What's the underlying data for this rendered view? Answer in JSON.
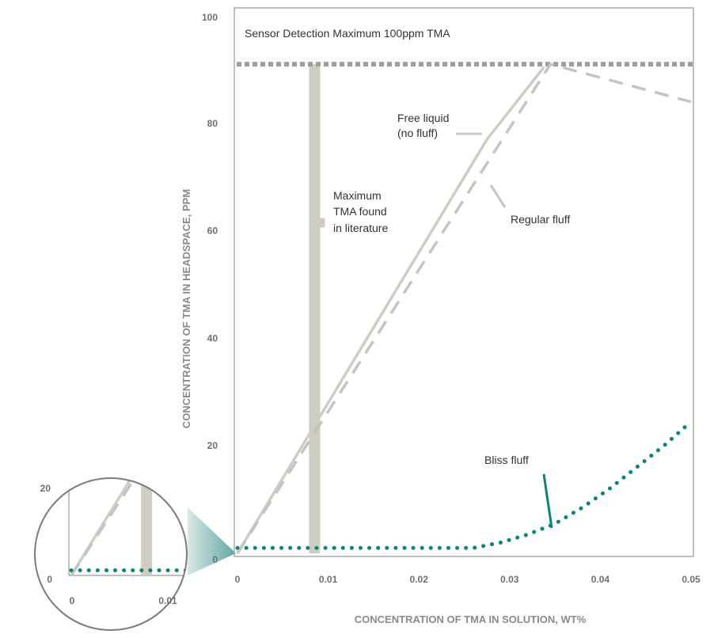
{
  "chart_data": {
    "type": "line",
    "xlabel": "CONCENTRATION OF TMA IN SOLUTION, WT%",
    "ylabel": "CONCENTRATION OF TMA IN HEADSPACE, PPM",
    "xlim": [
      0,
      0.05
    ],
    "ylim": [
      0,
      100
    ],
    "x_ticks": [
      0,
      0.01,
      0.02,
      0.03,
      0.04,
      0.05
    ],
    "x_tick_labels": [
      "0",
      "0.01",
      "0.02",
      "0.03",
      "0.04",
      "0.05"
    ],
    "y_ticks": [
      0,
      20,
      40,
      60,
      80,
      100
    ],
    "y_tick_labels": [
      "0",
      "20",
      "40",
      "60",
      "80",
      "100"
    ],
    "grid": false,
    "legend": "none",
    "sensor_max": {
      "label": "Sensor Detection Maximum 100ppm TMA",
      "y": 91,
      "color": "#9e9e9e"
    },
    "literature_band": {
      "label_lines": [
        "Maximum",
        "TMA found",
        "in literature"
      ],
      "x": 0.0085,
      "y_from": 0,
      "y_to": 91,
      "color": "#cfcdc1"
    },
    "series": [
      {
        "name": "Free liquid (no fluff)",
        "label_lines": [
          "Free liquid",
          "(no fluff)"
        ],
        "style": "solid",
        "color": "#cfcdc1",
        "x": [
          0,
          0.0275,
          0.0338
        ],
        "y": [
          0,
          77,
          90.5
        ]
      },
      {
        "name": "Regular fluff",
        "label_lines": [
          "Regular fluff"
        ],
        "style": "dashed",
        "color": "#c4c4c4",
        "x": [
          0,
          0.0345,
          0.05
        ],
        "y": [
          0,
          91,
          84
        ]
      },
      {
        "name": "Bliss fluff",
        "label_lines": [
          "Bliss fluff"
        ],
        "style": "dotted",
        "color": "#0e8379",
        "x": [
          0,
          0.026,
          0.029,
          0.032,
          0.035,
          0.038,
          0.041,
          0.044,
          0.047,
          0.05
        ],
        "y": [
          1,
          1,
          2,
          3.5,
          5.5,
          8.5,
          12,
          16,
          20,
          24.5
        ]
      }
    ],
    "inset": {
      "description_free": true,
      "x_tick_labels": [
        "0",
        "0.01"
      ],
      "y_tick_labels": [
        "0",
        "20"
      ]
    }
  }
}
